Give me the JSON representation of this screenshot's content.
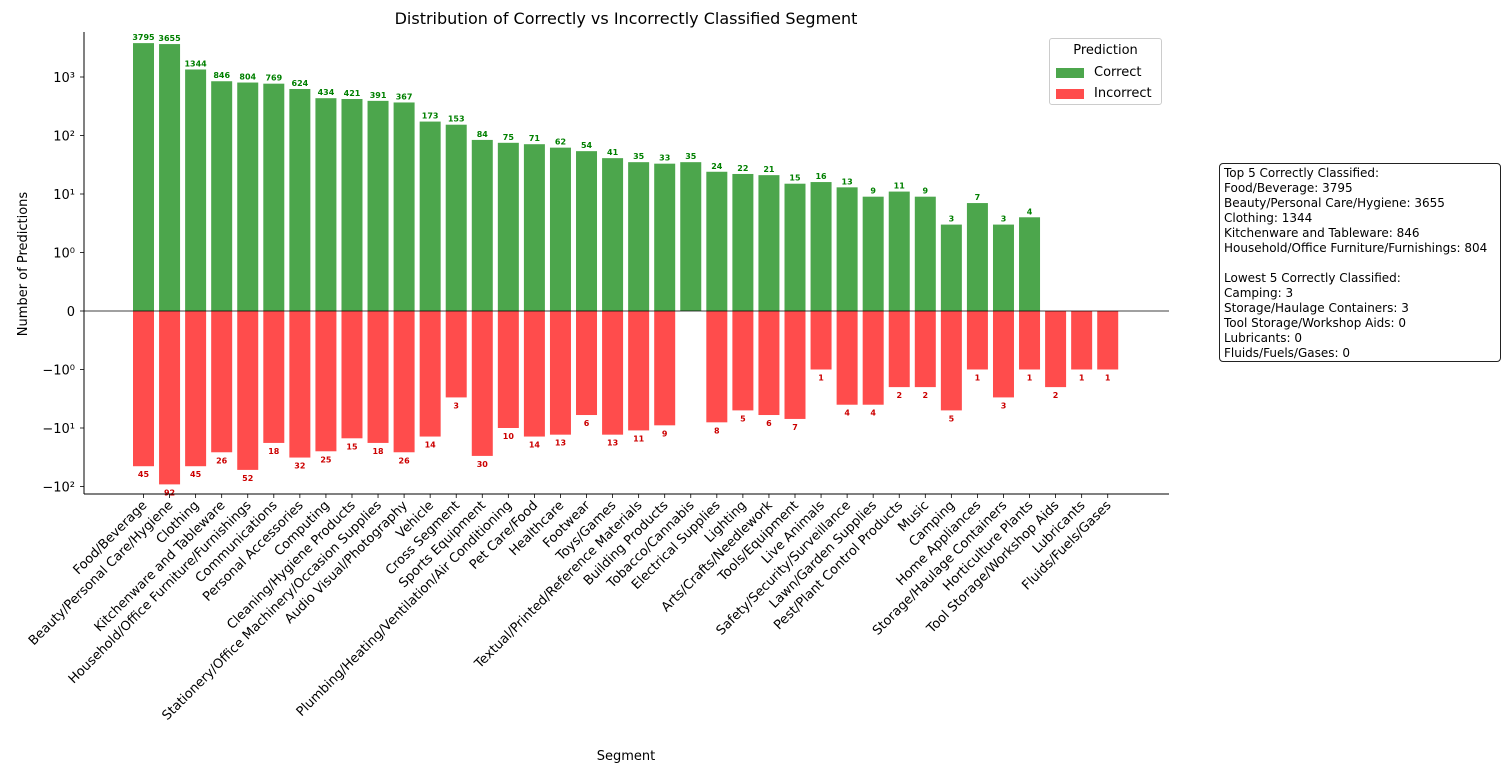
{
  "chart_data": {
    "type": "bar",
    "title": "Distribution of Correctly vs Incorrectly Classified Segment",
    "xlabel": "Segment",
    "ylabel": "Number of Predictions",
    "yscale": "symlog",
    "y_ticks": [
      {
        "value": -100,
        "label": "−10²"
      },
      {
        "value": -10,
        "label": "−10¹"
      },
      {
        "value": -1,
        "label": "−10⁰"
      },
      {
        "value": 0,
        "label": "0"
      },
      {
        "value": 1,
        "label": "10⁰"
      },
      {
        "value": 10,
        "label": "10¹"
      },
      {
        "value": 100,
        "label": "10²"
      },
      {
        "value": 1000,
        "label": "10³"
      }
    ],
    "categories": [
      "Food/Beverage",
      "Beauty/Personal Care/Hygiene",
      "Clothing",
      "Kitchenware and Tableware",
      "Household/Office Furniture/Furnishings",
      "Communications",
      "Personal Accessories",
      "Computing",
      "Cleaning/Hygiene Products",
      "Stationery/Office Machinery/Occasion Supplies",
      "Audio Visual/Photography",
      "Vehicle",
      "Cross Segment",
      "Sports Equipment",
      "Plumbing/Heating/Ventilation/Air Conditioning",
      "Pet Care/Food",
      "Healthcare",
      "Footwear",
      "Toys/Games",
      "Textual/Printed/Reference Materials",
      "Building Products",
      "Tobacco/Cannabis",
      "Electrical Supplies",
      "Lighting",
      "Arts/Crafts/Needlework",
      "Tools/Equipment",
      "Live Animals",
      "Safety/Security/Surveillance",
      "Lawn/Garden Supplies",
      "Pest/Plant Control Products",
      "Music",
      "Camping",
      "Home Appliances",
      "Storage/Haulage Containers",
      "Horticulture Plants",
      "Tool Storage/Workshop Aids",
      "Lubricants",
      "Fluids/Fuels/Gases"
    ],
    "series": [
      {
        "name": "Correct",
        "color": "#4ca64c",
        "values": [
          3795,
          3655,
          1344,
          846,
          804,
          769,
          624,
          434,
          421,
          391,
          367,
          173,
          153,
          84,
          75,
          71,
          62,
          54,
          41,
          35,
          33,
          35,
          24,
          22,
          21,
          15,
          16,
          13,
          9,
          11,
          9,
          3,
          7,
          3,
          4,
          0,
          0,
          0
        ]
      },
      {
        "name": "Incorrect",
        "color": "#ff4c4c",
        "values": [
          45,
          92,
          45,
          26,
          52,
          18,
          32,
          25,
          15,
          18,
          26,
          14,
          3,
          30,
          10,
          14,
          13,
          6,
          13,
          11,
          9,
          0,
          8,
          5,
          6,
          7,
          1,
          4,
          4,
          2,
          2,
          5,
          1,
          3,
          1,
          2,
          1,
          1
        ]
      }
    ],
    "label_colors": {
      "correct": "#008000",
      "incorrect": "#cc0000"
    },
    "legend": {
      "title": "Prediction",
      "position": "top-right"
    }
  },
  "legend": {
    "title": "Prediction",
    "items": [
      {
        "label": "Correct",
        "color": "#4ca64c"
      },
      {
        "label": "Incorrect",
        "color": "#ff4c4c"
      }
    ]
  },
  "info_box": {
    "lines": [
      "Top 5 Correctly Classified:",
      "Food/Beverage: 3795",
      "Beauty/Personal Care/Hygiene: 3655",
      "Clothing: 1344",
      "Kitchenware and Tableware: 846",
      "Household/Office Furniture/Furnishings: 804",
      "",
      "Lowest 5 Correctly Classified:",
      "Camping: 3",
      "Storage/Haulage Containers: 3",
      "Tool Storage/Workshop Aids: 0",
      "Lubricants: 0",
      "Fluids/Fuels/Gases: 0"
    ]
  }
}
